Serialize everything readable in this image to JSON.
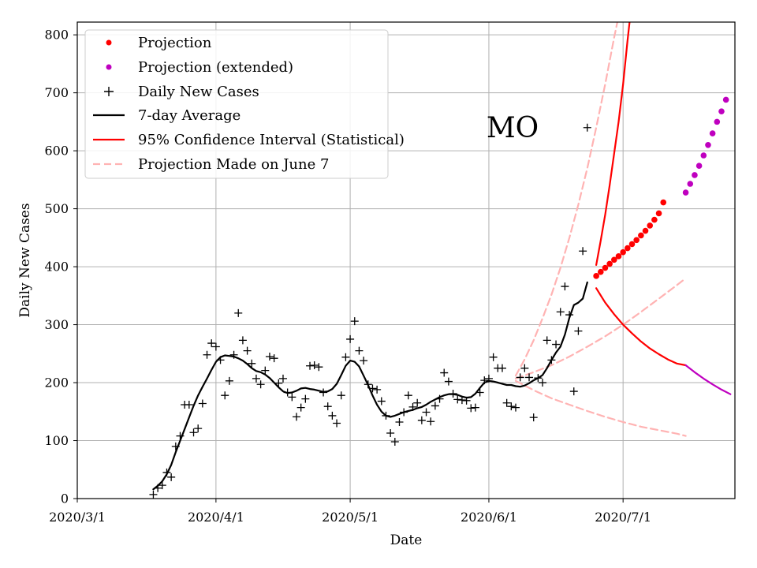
{
  "chart_data": {
    "type": "line",
    "title": "",
    "annotation": "MO",
    "xlabel": "Date",
    "ylabel": "Daily New Cases",
    "x_unit": "days since 2020-03-01",
    "xlim": [
      0,
      147
    ],
    "ylim": [
      0,
      822
    ],
    "xticks": [
      {
        "day": 0,
        "label": "2020/3/1"
      },
      {
        "day": 31,
        "label": "2020/4/1"
      },
      {
        "day": 61,
        "label": "2020/5/1"
      },
      {
        "day": 92,
        "label": "2020/6/1"
      },
      {
        "day": 122,
        "label": "2020/7/1"
      }
    ],
    "yticks": [
      0,
      100,
      200,
      300,
      400,
      500,
      600,
      700,
      800
    ],
    "grid": true,
    "legend_position": "top-left",
    "legend": [
      {
        "key": "projection",
        "label": "Projection",
        "marker": "dot",
        "color": "#ff0000"
      },
      {
        "key": "projection_extended",
        "label": "Projection (extended)",
        "marker": "dot",
        "color": "#bf00bf"
      },
      {
        "key": "daily",
        "label": "Daily New Cases",
        "marker": "plus",
        "color": "#000000"
      },
      {
        "key": "avg",
        "label": "7-day Average",
        "marker": "line",
        "color": "#000000"
      },
      {
        "key": "ci",
        "label": "95% Confidence Interval (Statistical)",
        "marker": "line",
        "color": "#ff0000"
      },
      {
        "key": "june7",
        "label": "Projection Made on June 7",
        "marker": "dashed",
        "color": "#ffb3b3"
      }
    ],
    "series": {
      "daily_new_cases": {
        "x": [
          17,
          18,
          19,
          20,
          21,
          22,
          23,
          24,
          25,
          26,
          27,
          28,
          29,
          30,
          31,
          32,
          33,
          34,
          35,
          36,
          37,
          38,
          39,
          40,
          41,
          42,
          43,
          44,
          45,
          46,
          47,
          48,
          49,
          50,
          51,
          52,
          53,
          54,
          55,
          56,
          57,
          58,
          59,
          60,
          61,
          62,
          63,
          64,
          65,
          66,
          67,
          68,
          69,
          70,
          71,
          72,
          73,
          74,
          75,
          76,
          77,
          78,
          79,
          80,
          81,
          82,
          83,
          84,
          85,
          86,
          87,
          88,
          89,
          90,
          91,
          92,
          93,
          94,
          95,
          96,
          97,
          98,
          99,
          100,
          101,
          102,
          103,
          104,
          105,
          106,
          107,
          108,
          109,
          110,
          111,
          112,
          113,
          114,
          115
        ],
        "y": [
          7,
          18,
          23,
          45,
          37,
          90,
          108,
          162,
          162,
          114,
          121,
          164,
          248,
          268,
          262,
          239,
          178,
          203,
          248,
          320,
          273,
          255,
          233,
          207,
          197,
          221,
          245,
          242,
          199,
          207,
          183,
          175,
          141,
          157,
          172,
          229,
          230,
          227,
          183,
          159,
          143,
          130,
          178,
          244,
          275,
          306,
          255,
          238,
          197,
          190,
          188,
          168,
          143,
          113,
          98,
          132,
          149,
          178,
          158,
          165,
          135,
          149,
          133,
          160,
          172,
          217,
          202,
          181,
          171,
          170,
          169,
          156,
          157,
          183,
          204,
          207,
          244,
          225,
          225,
          165,
          159,
          157,
          209,
          225,
          209,
          140,
          208,
          200,
          273,
          239,
          266,
          322,
          366,
          317,
          185,
          289,
          427,
          640,
          null
        ],
        "note": "each point drawn as a '+' marker"
      },
      "seven_day_average": {
        "x": [
          17,
          18,
          19,
          20,
          21,
          22,
          23,
          24,
          25,
          26,
          27,
          28,
          29,
          30,
          31,
          32,
          33,
          34,
          35,
          36,
          37,
          38,
          39,
          40,
          41,
          42,
          43,
          44,
          45,
          46,
          47,
          48,
          49,
          50,
          51,
          52,
          53,
          54,
          55,
          56,
          57,
          58,
          59,
          60,
          61,
          62,
          63,
          64,
          65,
          66,
          67,
          68,
          69,
          70,
          71,
          72,
          73,
          74,
          75,
          76,
          77,
          78,
          79,
          80,
          81,
          82,
          83,
          84,
          85,
          86,
          87,
          88,
          89,
          90,
          91,
          92,
          93,
          94,
          95,
          96,
          97,
          98,
          99,
          100,
          101,
          102,
          103,
          104,
          105,
          106,
          107,
          108,
          109,
          110,
          111,
          112,
          113,
          114,
          115
        ],
        "y": [
          16,
          22,
          30,
          42,
          58,
          80,
          100,
          120,
          140,
          160,
          178,
          193,
          207,
          222,
          236,
          244,
          247,
          246,
          245,
          242,
          238,
          232,
          225,
          220,
          218,
          214,
          208,
          200,
          192,
          185,
          182,
          183,
          186,
          190,
          191,
          189,
          188,
          186,
          184,
          185,
          189,
          198,
          213,
          229,
          238,
          236,
          228,
          212,
          196,
          178,
          162,
          150,
          143,
          141,
          143,
          146,
          149,
          151,
          153,
          156,
          158,
          162,
          167,
          171,
          175,
          178,
          180,
          180,
          179,
          176,
          174,
          175,
          181,
          191,
          200,
          203,
          202,
          200,
          198,
          196,
          196,
          194,
          193,
          195,
          199,
          204,
          208,
          213,
          225,
          239,
          252,
          262,
          283,
          312,
          334,
          338,
          345,
          373,
          null
        ]
      },
      "projection": {
        "x": [
          116,
          117,
          118,
          119,
          120,
          121,
          122,
          123,
          124,
          125,
          126,
          127,
          128,
          129,
          130,
          131,
          132,
          133,
          134,
          135,
          136
        ],
        "y": [
          384,
          391,
          398,
          405,
          412,
          418,
          425,
          432,
          439,
          446,
          454,
          462,
          471,
          481,
          492,
          511,
          null,
          null,
          null,
          null,
          null
        ],
        "color": "#ff0000"
      },
      "projection_extended": {
        "x": [
          136,
          137,
          138,
          139,
          140,
          141,
          142,
          143,
          144,
          145,
          146
        ],
        "y": [
          528,
          543,
          558,
          574,
          592,
          610,
          630,
          650,
          668,
          688,
          null
        ],
        "color": "#bf00bf"
      },
      "ci_upper": {
        "x": [
          116,
          117,
          118,
          119,
          120,
          121,
          122,
          123,
          124,
          125,
          126
        ],
        "y": [
          403,
          445,
          490,
          540,
          595,
          650,
          715,
          790,
          860,
          940,
          1020
        ],
        "color": "#ff0000"
      },
      "ci_lower": {
        "x": [
          116,
          118,
          120,
          122,
          124,
          126,
          128,
          130,
          132,
          134,
          136
        ],
        "y": [
          363,
          338,
          318,
          300,
          285,
          271,
          259,
          249,
          240,
          233,
          230
        ],
        "color": "#ff0000"
      },
      "ci_lower_extended": {
        "x": [
          136,
          138,
          140,
          142,
          144,
          146
        ],
        "y": [
          230,
          218,
          207,
          197,
          188,
          180
        ],
        "color": "#bf00bf"
      },
      "june7_upper": {
        "x": [
          98,
          100,
          102,
          104,
          106,
          108,
          110,
          112,
          114,
          116,
          118,
          120,
          122,
          124
        ],
        "y": [
          212,
          240,
          273,
          311,
          352,
          398,
          450,
          507,
          570,
          640,
          715,
          795,
          870,
          950
        ],
        "color": "#ffb3b3"
      },
      "june7_middle": {
        "x": [
          98,
          102,
          106,
          110,
          114,
          118,
          122,
          126,
          130,
          134,
          136
        ],
        "y": [
          207,
          218,
          230,
          245,
          262,
          280,
          300,
          322,
          345,
          368,
          380
        ],
        "color": "#ffb3b3"
      },
      "june7_lower": {
        "x": [
          98,
          102,
          106,
          110,
          114,
          118,
          122,
          126,
          130,
          134,
          136
        ],
        "y": [
          203,
          187,
          173,
          162,
          151,
          141,
          132,
          124,
          118,
          112,
          108
        ],
        "color": "#ffb3b3"
      }
    }
  }
}
